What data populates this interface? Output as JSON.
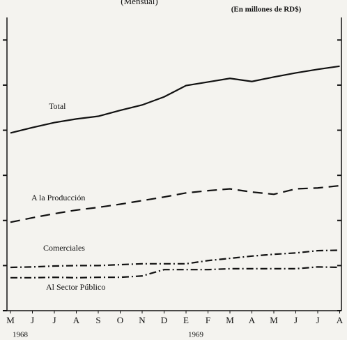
{
  "chart_data": {
    "type": "line",
    "title": "(Mensual)",
    "subtitle": "(En millones de RD$)",
    "categories": [
      "M",
      "J",
      "J",
      "A",
      "S",
      "O",
      "N",
      "D",
      "E",
      "F",
      "M",
      "A",
      "M",
      "J",
      "J",
      "A"
    ],
    "year_labels": [
      {
        "index": 0,
        "label": "1968"
      },
      {
        "index": 8,
        "label": "1969"
      }
    ],
    "ylim": [
      0,
      6.5
    ],
    "yticks": [
      0,
      1,
      2,
      3,
      4,
      5,
      6
    ],
    "series": [
      {
        "name": "Total",
        "color": "#111111",
        "dash": "none",
        "values": [
          3.94,
          4.06,
          4.17,
          4.25,
          4.31,
          4.44,
          4.56,
          4.74,
          4.99,
          5.07,
          5.15,
          5.08,
          5.18,
          5.27,
          5.35,
          5.42
        ]
      },
      {
        "name": "A la Producción",
        "color": "#111111",
        "dash": "14 8",
        "values": [
          1.96,
          2.06,
          2.15,
          2.23,
          2.29,
          2.36,
          2.44,
          2.52,
          2.61,
          2.66,
          2.7,
          2.63,
          2.58,
          2.7,
          2.72,
          2.77
        ]
      },
      {
        "name": "Comerciales",
        "color": "#111111",
        "dash": "10 4 2 4",
        "values": [
          0.96,
          0.97,
          0.99,
          1.0,
          1.0,
          1.02,
          1.04,
          1.04,
          1.04,
          1.11,
          1.16,
          1.21,
          1.25,
          1.28,
          1.33,
          1.34
        ]
      },
      {
        "name": "Al Sector Público",
        "color": "#111111",
        "dash": "10 4 2 4",
        "values": [
          0.73,
          0.73,
          0.74,
          0.73,
          0.74,
          0.74,
          0.77,
          0.91,
          0.91,
          0.91,
          0.93,
          0.93,
          0.93,
          0.93,
          0.97,
          0.96
        ]
      }
    ]
  }
}
